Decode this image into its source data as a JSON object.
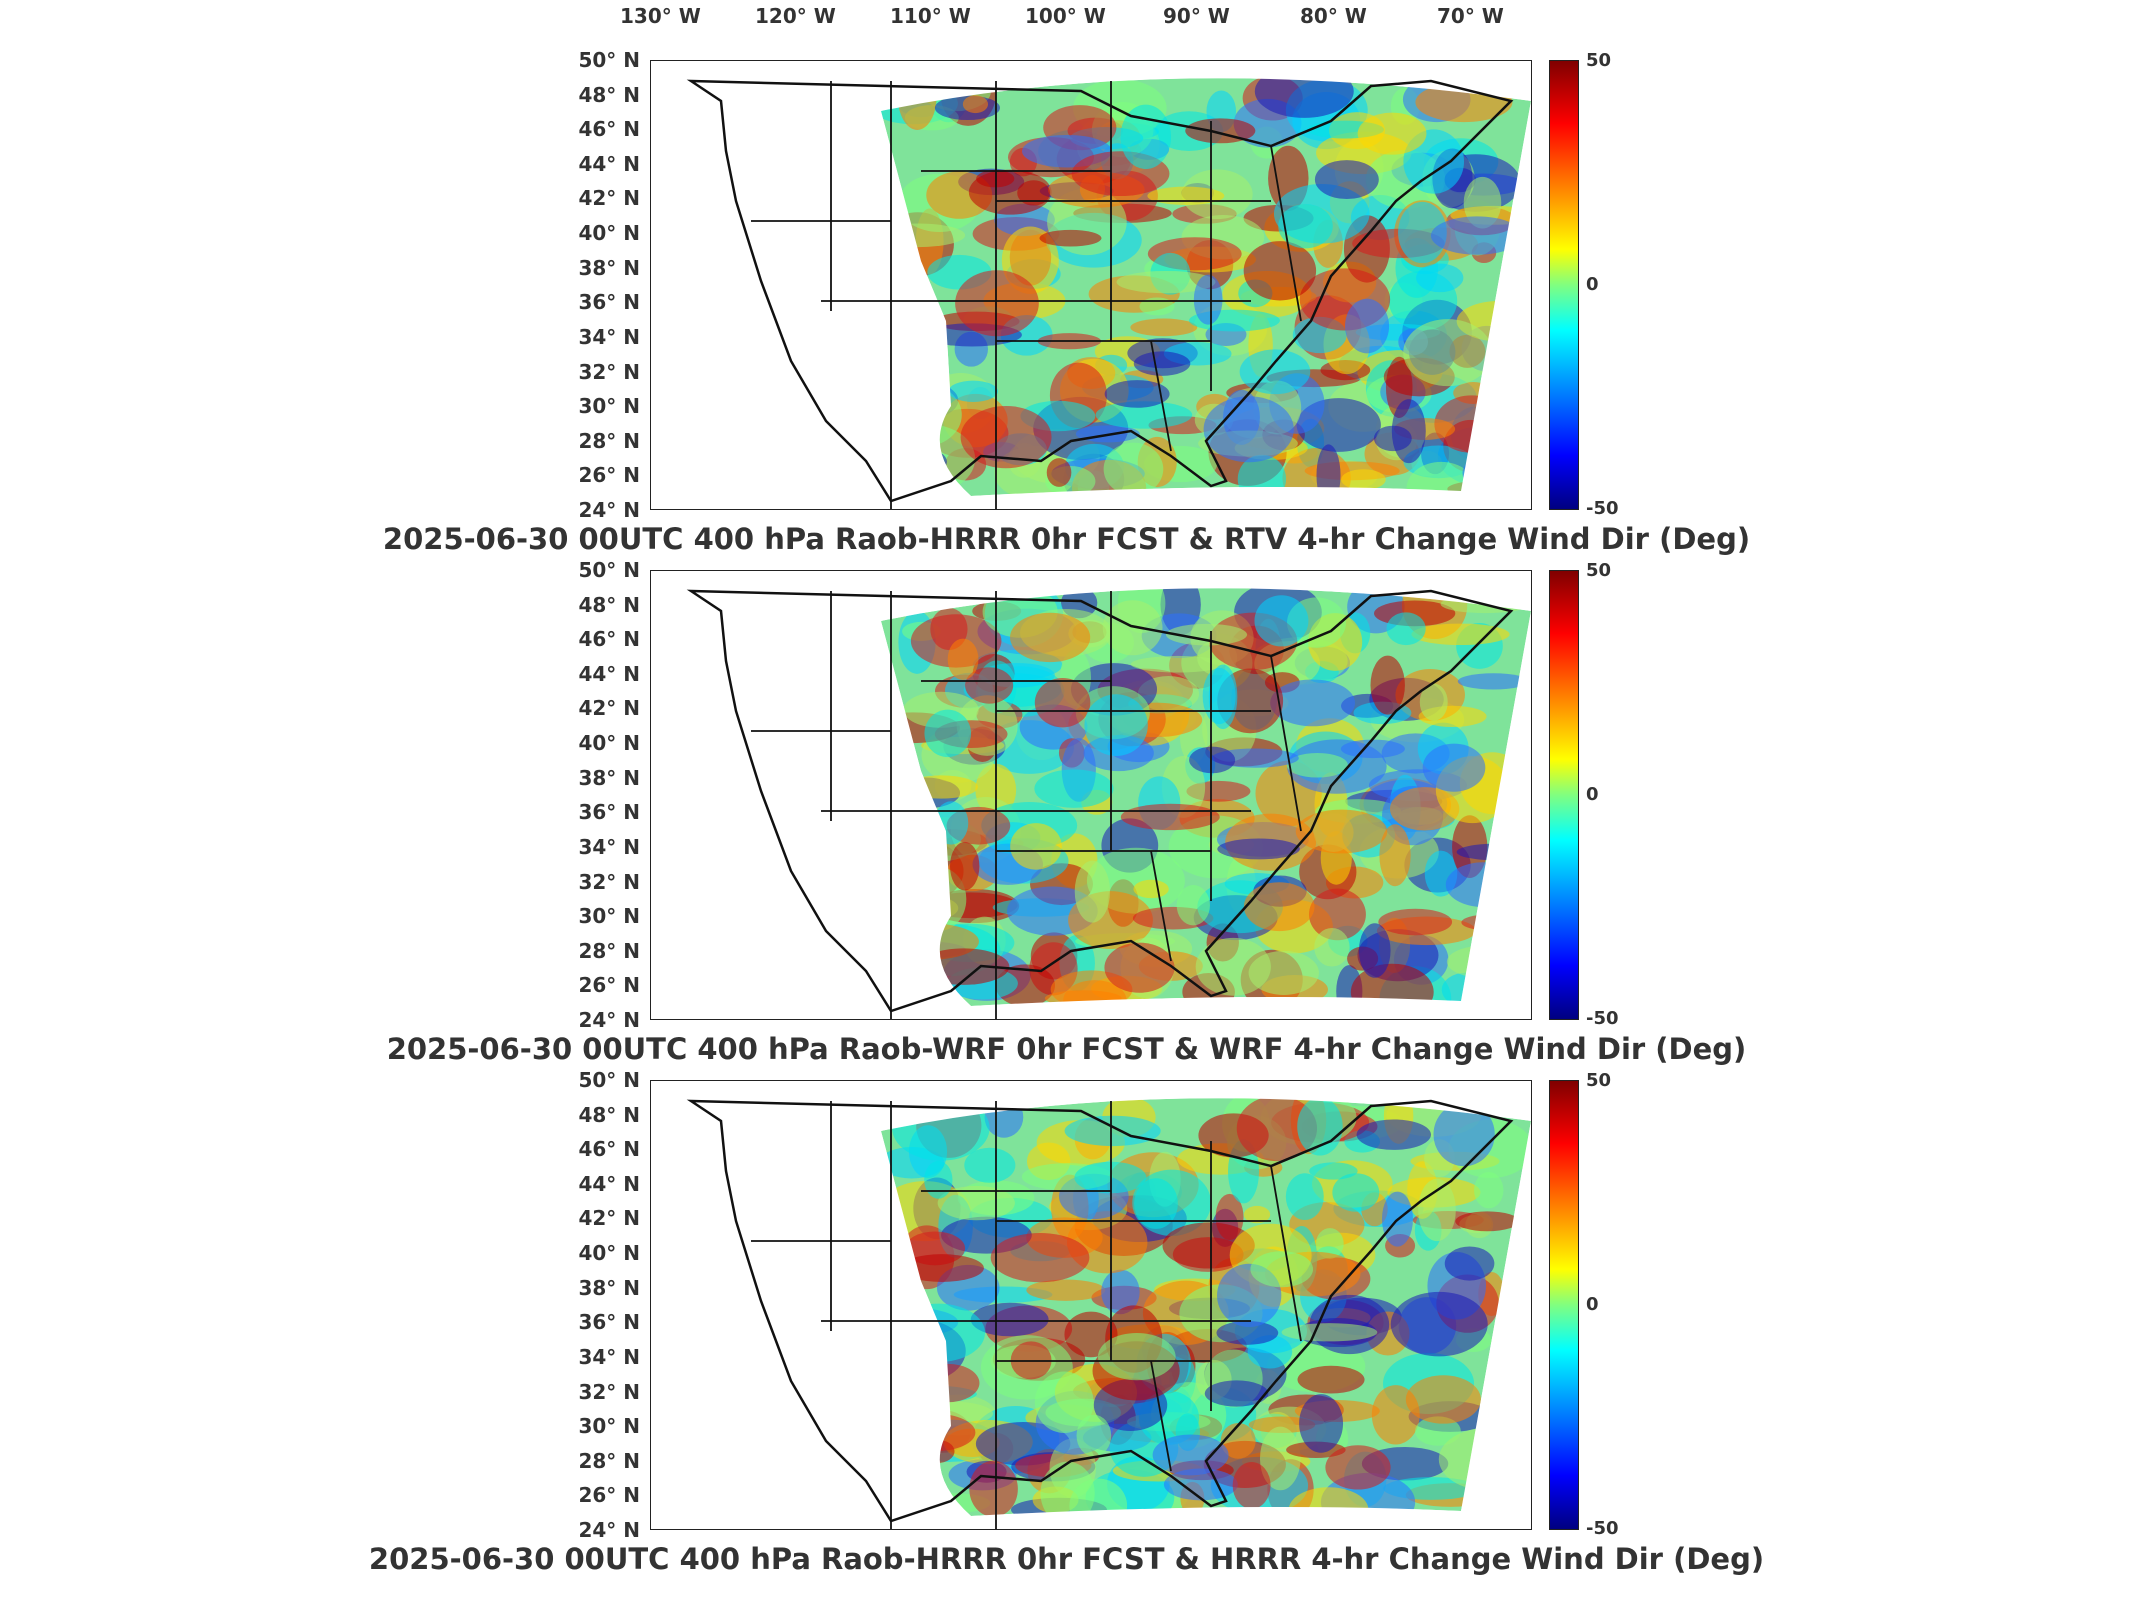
{
  "lon_labels": [
    "130° W",
    "120° W",
    "110° W",
    "100° W",
    "90° W",
    "80° W",
    "70° W"
  ],
  "lat_labels": [
    "50° N",
    "48° N",
    "46° N",
    "44° N",
    "42° N",
    "40° N",
    "38° N",
    "36° N",
    "34° N",
    "32° N",
    "30° N",
    "28° N",
    "26° N",
    "24° N"
  ],
  "colorbar": {
    "max_label": "50",
    "mid_label": "0",
    "min_label": "-50",
    "colors": [
      "#800000",
      "#ff0000",
      "#ff8000",
      "#ffff00",
      "#80ff80",
      "#00ffff",
      "#0080ff",
      "#0000ff",
      "#000080"
    ]
  },
  "panels": [
    {
      "title": "2025-06-30 00UTC 400 hPa Raob-HRRR 0hr FCST & RTV 4-hr Change Wind Dir (Deg)"
    },
    {
      "title": "2025-06-30 00UTC 400 hPa Raob-WRF 0hr FCST & WRF 4-hr Change Wind Dir (Deg)"
    },
    {
      "title": "2025-06-30 00UTC 400 hPa Raob-HRRR 0hr FCST & HRRR 4-hr Change Wind Dir (Deg)"
    }
  ]
}
